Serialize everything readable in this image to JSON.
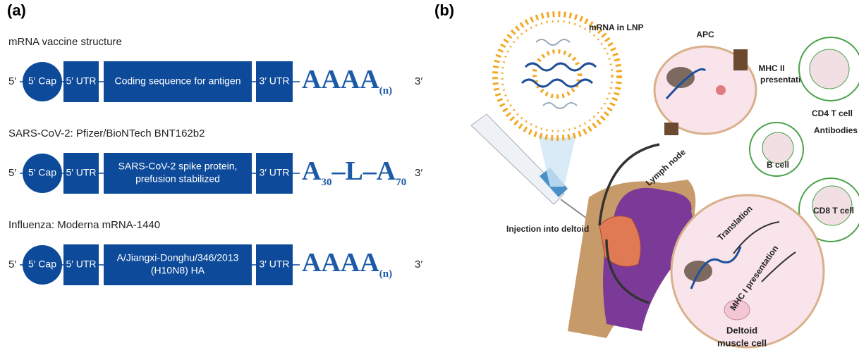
{
  "panel_a": {
    "label": "(a)",
    "constructs": [
      {
        "title": "mRNA vaccine structure",
        "five_prime": "5′",
        "cap": "5′ Cap",
        "utr5": "5′ UTR",
        "coding": [
          "Coding sequence for antigen"
        ],
        "utr3": "3′ UTR",
        "tail": [
          "AAAA",
          "(n)"
        ],
        "three_prime": "3′"
      },
      {
        "title": "SARS-CoV-2: Pfizer/BioNTech BNT162b2",
        "five_prime": "5′",
        "cap": "5′ Cap",
        "utr5": "5′ UTR",
        "coding": [
          "SARS-CoV-2 spike protein,",
          "prefusion stabilized"
        ],
        "utr3": "3′ UTR",
        "tail": [
          "A",
          "30",
          "–L–A",
          "70"
        ],
        "three_prime": "3′"
      },
      {
        "title": "Influenza: Moderna mRNA-1440",
        "five_prime": "5′",
        "cap": "5′ Cap",
        "utr5": "5′ UTR",
        "coding": [
          "A/Jiangxi-Donghu/346/2013",
          "(H10N8) HA"
        ],
        "utr3": "3′ UTR",
        "tail": [
          "AAAA",
          "(n)"
        ],
        "three_prime": "3′"
      }
    ]
  },
  "panel_b": {
    "label": "(b)",
    "lnp": "mRNA in LNP",
    "apc": "APC",
    "cd4": "CD4 T cell",
    "mhc2": [
      "MHC II",
      "presentation"
    ],
    "antibodies": "Antibodies",
    "lymph": "Lymph node",
    "bcell": "B cell",
    "injection": "Injection into deltoid",
    "cd8": "CD8 T cell",
    "translation": "Translation",
    "mhc1": "MHC I presentation",
    "muscle": [
      "Deltoid",
      "muscle cell"
    ]
  }
}
